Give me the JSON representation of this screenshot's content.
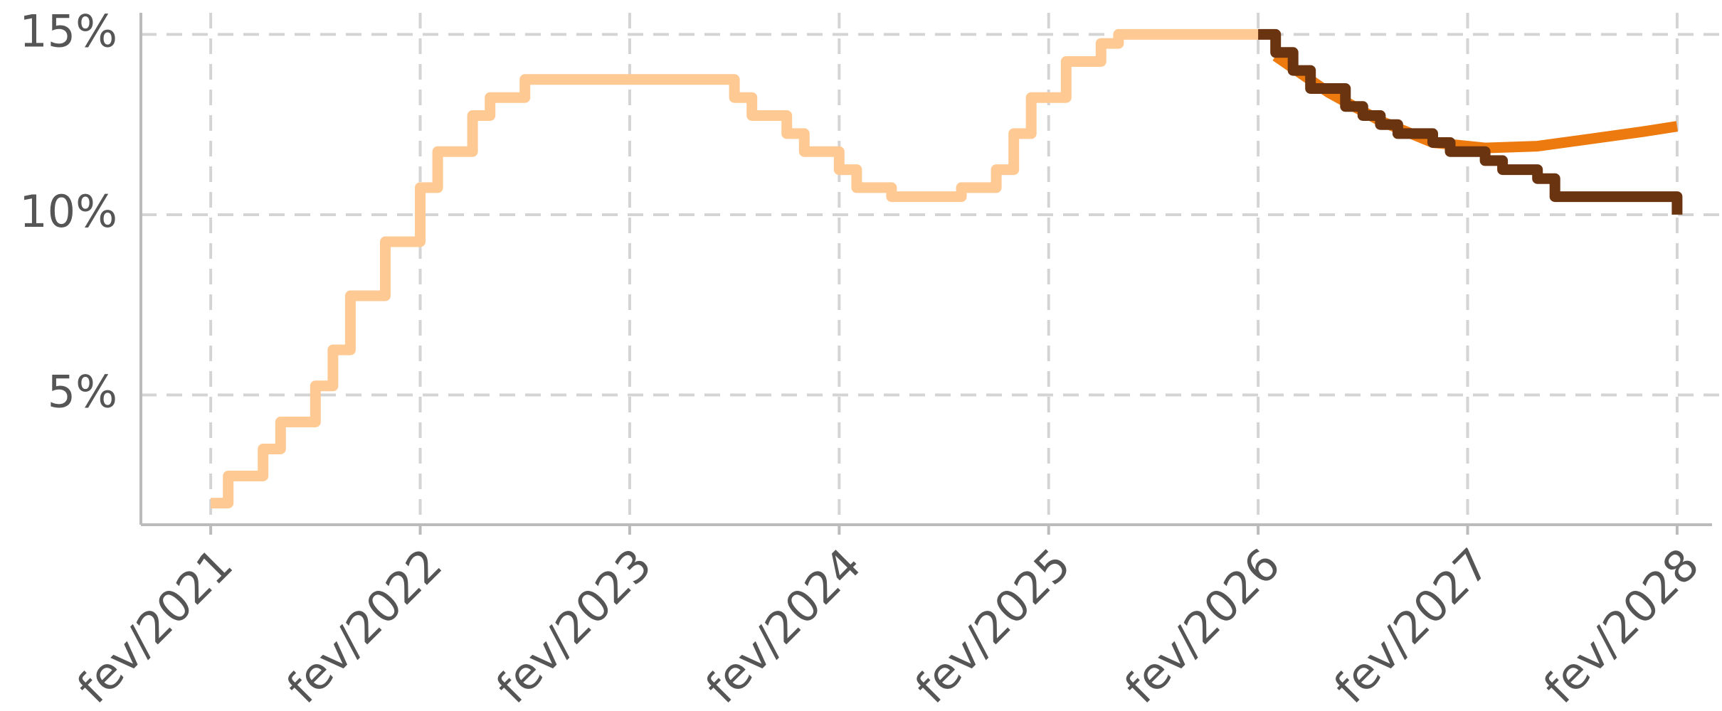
{
  "chart_data": {
    "type": "line",
    "xlim": [
      "2020-10",
      "2028-04"
    ],
    "xticks": [
      {
        "value": "2021-02",
        "label": "fev/2021"
      },
      {
        "value": "2022-02",
        "label": "fev/2022"
      },
      {
        "value": "2023-02",
        "label": "fev/2023"
      },
      {
        "value": "2024-02",
        "label": "fev/2024"
      },
      {
        "value": "2025-02",
        "label": "fev/2025"
      },
      {
        "value": "2026-02",
        "label": "fev/2026"
      },
      {
        "value": "2027-02",
        "label": "fev/2027"
      },
      {
        "value": "2028-02",
        "label": "fev/2028"
      }
    ],
    "ylim": [
      1.4,
      15.6
    ],
    "yticks": [
      {
        "value": 5,
        "label": "5%"
      },
      {
        "value": 10,
        "label": "10%"
      },
      {
        "value": 15,
        "label": "15%"
      }
    ],
    "grid": true,
    "series": [
      {
        "color": "#ffc994",
        "step": "post",
        "x": [
          "2021-02",
          "2021-03",
          "2021-05",
          "2021-06",
          "2021-08",
          "2021-09",
          "2021-10",
          "2021-12",
          "2022-02",
          "2022-03",
          "2022-05",
          "2022-06",
          "2022-08",
          "2023-08",
          "2023-09",
          "2023-11",
          "2023-12",
          "2024-02",
          "2024-03",
          "2024-05",
          "2024-09",
          "2024-11",
          "2024-12",
          "2025-01",
          "2025-03",
          "2025-05",
          "2025-06",
          "2026-02"
        ],
        "values": [
          2.0,
          2.75,
          3.5,
          4.25,
          5.25,
          6.25,
          7.75,
          9.25,
          10.75,
          11.75,
          12.75,
          13.25,
          13.75,
          13.25,
          12.75,
          12.25,
          11.75,
          11.25,
          10.75,
          10.5,
          10.75,
          11.25,
          12.25,
          13.25,
          14.25,
          14.75,
          15,
          15
        ]
      },
      {
        "color": "#ec7a0e",
        "x": [
          "2026-03",
          "2026-06",
          "2026-09",
          "2026-12",
          "2027-03",
          "2027-06",
          "2027-09",
          "2027-12",
          "2028-02"
        ],
        "values": [
          14.4,
          13.4,
          12.6,
          12.0,
          11.85,
          11.9,
          12.1,
          12.3,
          12.45
        ]
      },
      {
        "color": "#6b3410",
        "step": "post",
        "x": [
          "2026-02",
          "2026-03",
          "2026-04",
          "2026-05",
          "2026-07",
          "2026-08",
          "2026-09",
          "2026-10",
          "2026-12",
          "2027-01",
          "2027-03",
          "2027-04",
          "2027-06",
          "2027-07",
          "2028-02"
        ],
        "values": [
          15,
          14.5,
          14.0,
          13.5,
          13.0,
          12.75,
          12.5,
          12.25,
          12.0,
          11.75,
          11.5,
          11.25,
          11.0,
          10.5,
          10.0
        ]
      }
    ]
  }
}
